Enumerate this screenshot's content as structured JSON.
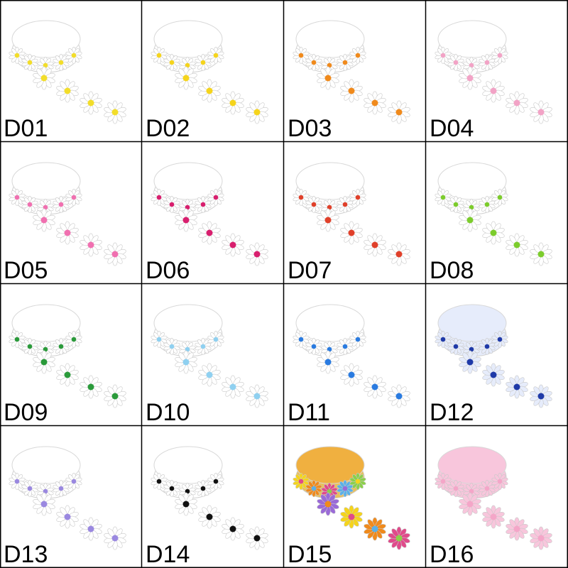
{
  "labels": [
    "D01",
    "D02",
    "D03",
    "D04",
    "D05",
    "D06",
    "D07",
    "D08",
    "D09",
    "D10",
    "D11",
    "D12",
    "D13",
    "D14",
    "D15",
    "D16"
  ]
}
